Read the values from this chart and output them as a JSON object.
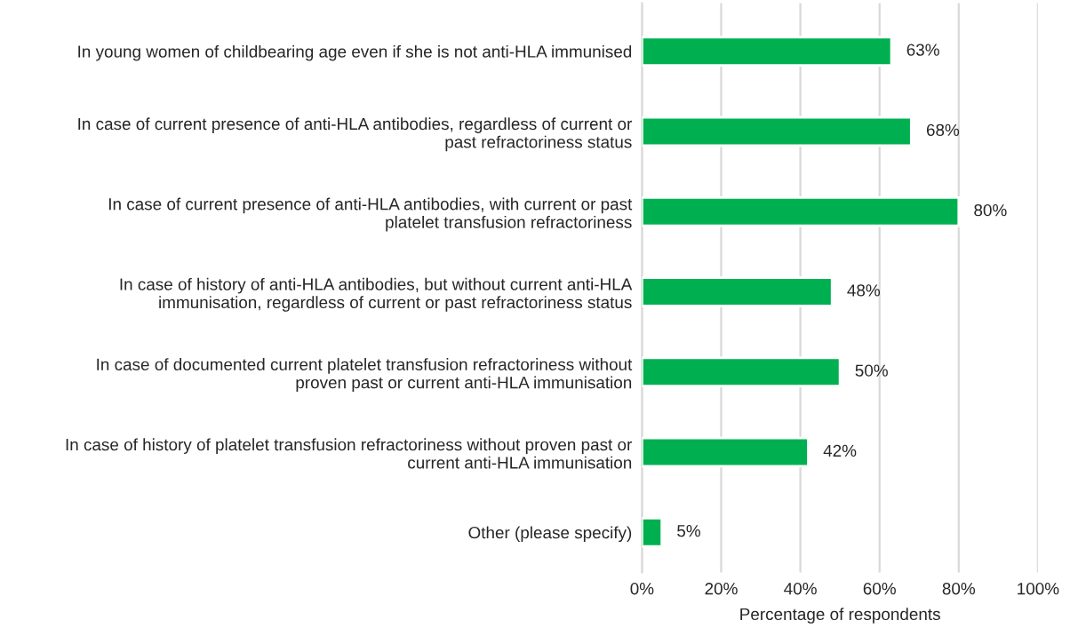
{
  "chart_data": {
    "type": "bar",
    "orientation": "horizontal",
    "xlabel": "Percentage of respondents",
    "categories": [
      "In young women of childbearing age even if she is not anti-HLA immunised",
      "In case of current presence of anti-HLA antibodies, regardless of current or\npast refractoriness status",
      "In case of current presence of anti-HLA antibodies, with current or past\nplatelet transfusion refractoriness",
      "In case of history of anti-HLA antibodies, but without current anti-HLA\nimmunisation, regardless of current or past refractoriness status",
      "In case of documented current platelet transfusion refractoriness without\nproven past or current anti-HLA immunisation",
      "In case of history of platelet transfusion refractoriness without proven past or\ncurrent anti-HLA immunisation",
      "Other (please specify)"
    ],
    "values": [
      63,
      68,
      80,
      48,
      50,
      42,
      5
    ],
    "value_labels": [
      "63%",
      "68%",
      "80%",
      "48%",
      "50%",
      "42%",
      "5%"
    ],
    "color": "#00b050",
    "xlim": [
      0,
      100
    ],
    "xticks": [
      {
        "value": 0,
        "label": "0%"
      },
      {
        "value": 20,
        "label": "20%"
      },
      {
        "value": 40,
        "label": "40%"
      },
      {
        "value": 60,
        "label": "60%"
      },
      {
        "value": 80,
        "label": "80%"
      },
      {
        "value": 100,
        "label": "100%"
      }
    ],
    "grid": "x",
    "legend": false
  }
}
